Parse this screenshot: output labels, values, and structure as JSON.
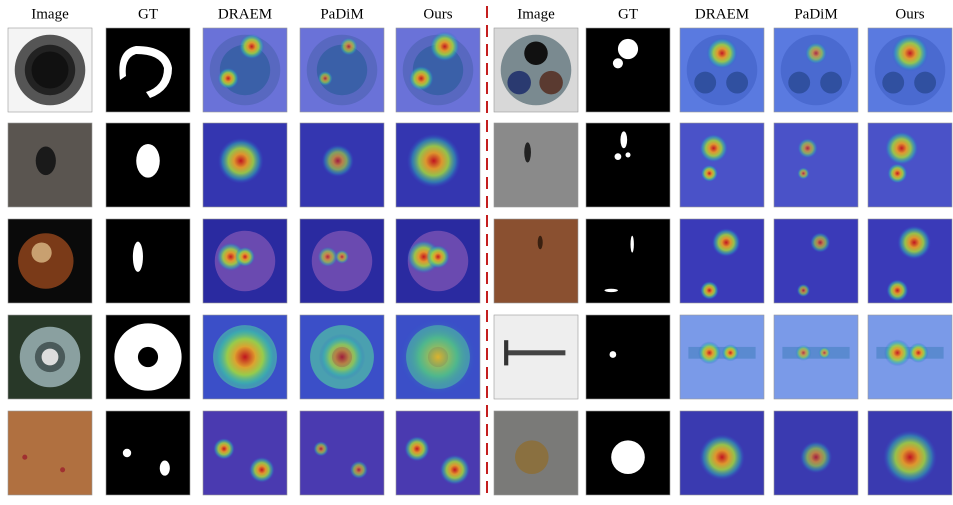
{
  "panels": [
    {
      "columns": [
        "Image",
        "GT",
        "DRAEM",
        "PaDiM",
        "Ours"
      ]
    },
    {
      "columns": [
        "Image",
        "GT",
        "DRAEM",
        "PaDiM",
        "Ours"
      ]
    }
  ]
}
